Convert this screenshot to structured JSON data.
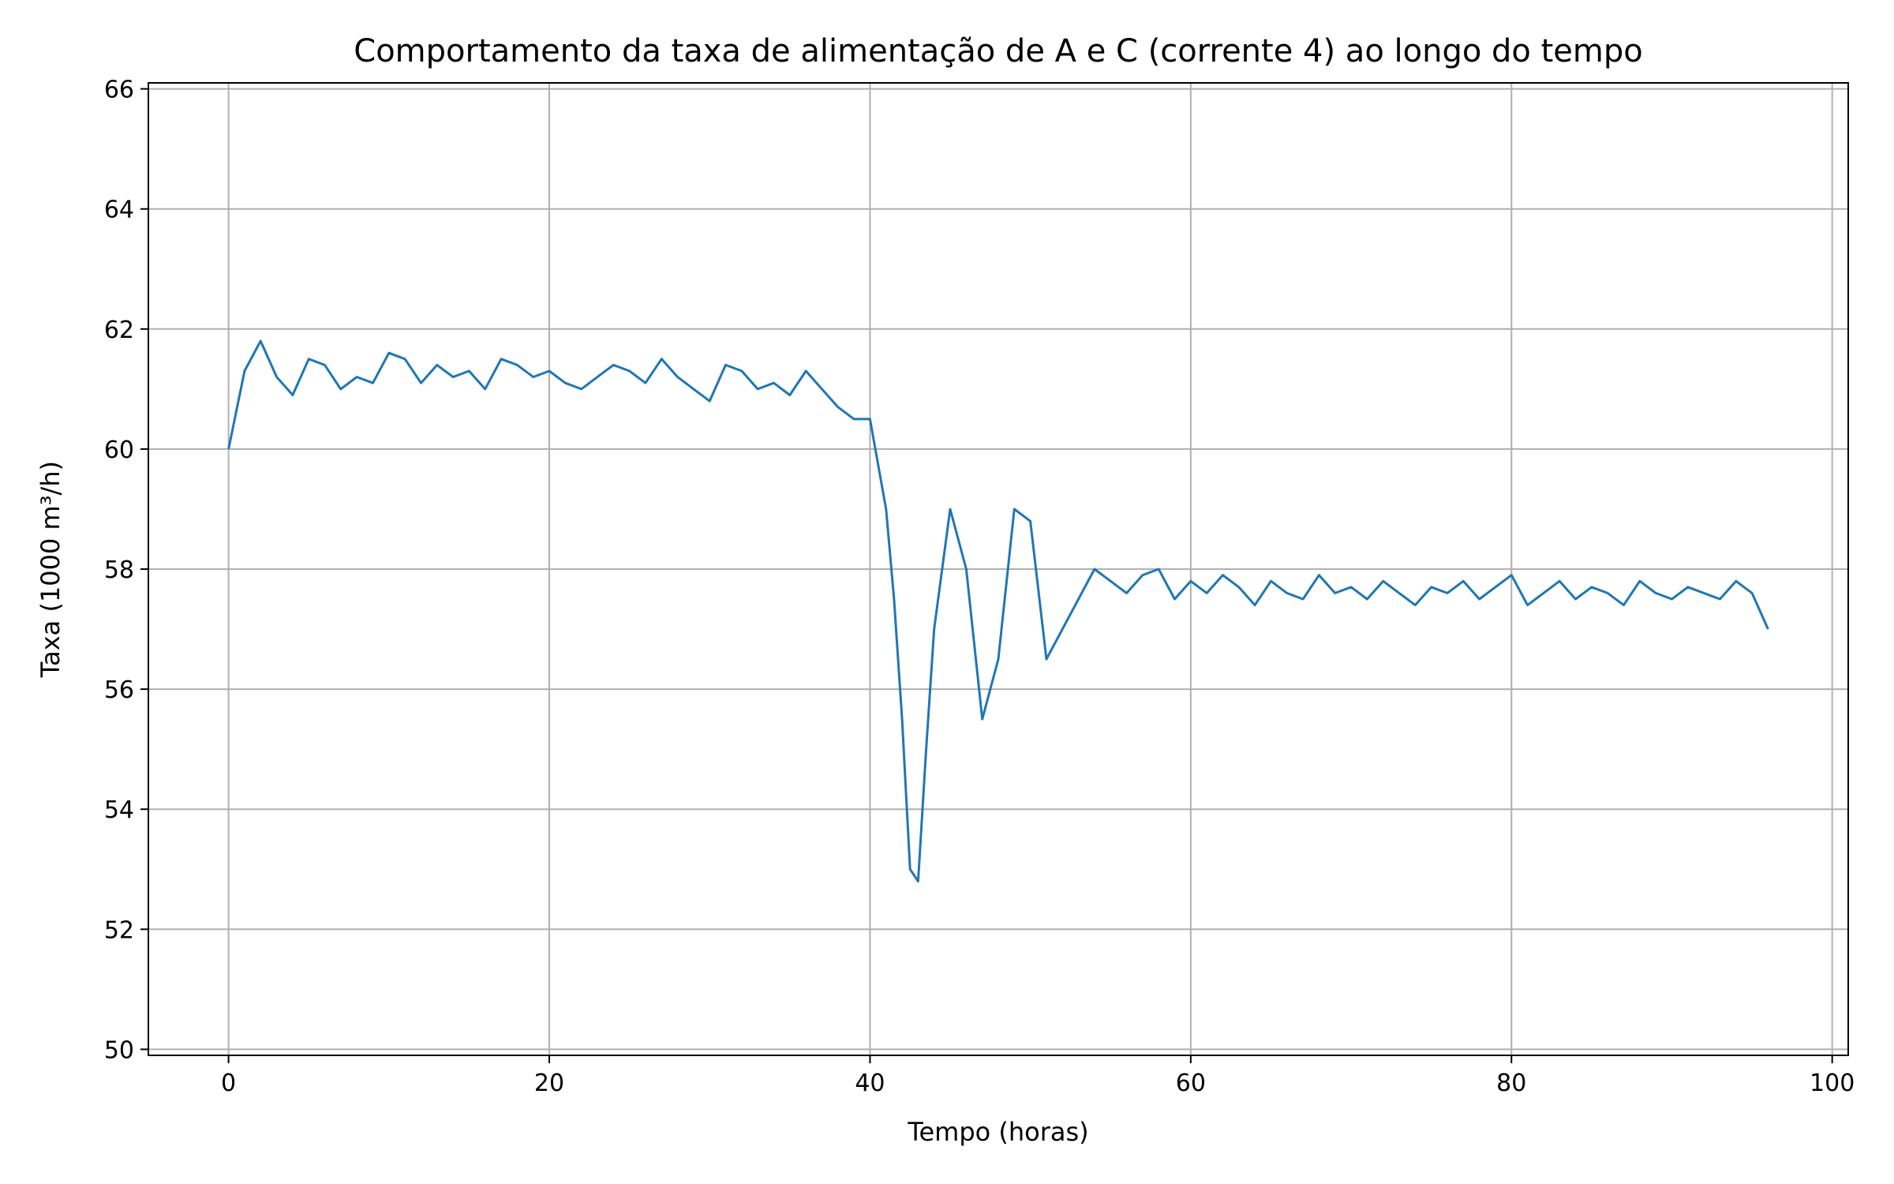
{
  "chart_data": {
    "type": "line",
    "title": "Comportamento da taxa de alimentação de A e C (corrente 4) ao longo do tempo",
    "xlabel": "Tempo (horas)",
    "ylabel": "Taxa (1000 m³/h)",
    "xlim": [
      -5,
      101
    ],
    "ylim": [
      49.9,
      66.1
    ],
    "xticks": [
      0,
      20,
      40,
      60,
      80,
      100
    ],
    "xtick_labels": [
      "0",
      "20",
      "40",
      "60",
      "80",
      "100"
    ],
    "yticks": [
      50,
      52,
      54,
      56,
      58,
      60,
      62,
      64,
      66
    ],
    "ytick_labels": [
      "50",
      "52",
      "54",
      "56",
      "58",
      "60",
      "62",
      "64",
      "66"
    ],
    "grid": true,
    "line_color": "#1f77b4",
    "series": [
      {
        "x": [
          0,
          1,
          2,
          3,
          4,
          5,
          6,
          7,
          8,
          9,
          10,
          11,
          12,
          13,
          14,
          15,
          16,
          17,
          18,
          19,
          20,
          21,
          22,
          23,
          24,
          25,
          26,
          27,
          28,
          29,
          30,
          31,
          32,
          33,
          34,
          35,
          36,
          37,
          38,
          39,
          40,
          41,
          41.5,
          42,
          42.5,
          43,
          43.5,
          44,
          45,
          46,
          47,
          48,
          49,
          50,
          51,
          52,
          53,
          54,
          55,
          56,
          57,
          58,
          59,
          60,
          61,
          62,
          63,
          64,
          65,
          66,
          67,
          68,
          69,
          70,
          71,
          72,
          73,
          74,
          75,
          76,
          77,
          78,
          79,
          80,
          81,
          82,
          83,
          84,
          85,
          86,
          87,
          88,
          89,
          90,
          91,
          92,
          93,
          94,
          95,
          96
        ],
        "y": [
          60.0,
          61.3,
          61.8,
          61.2,
          60.9,
          61.5,
          61.4,
          61.0,
          61.2,
          61.1,
          61.6,
          61.5,
          61.1,
          61.4,
          61.2,
          61.3,
          61.0,
          61.5,
          61.4,
          61.2,
          61.3,
          61.1,
          61.0,
          61.2,
          61.4,
          61.3,
          61.1,
          61.5,
          61.2,
          61.0,
          60.8,
          61.4,
          61.3,
          61.0,
          61.1,
          60.9,
          61.3,
          61.0,
          60.7,
          60.5,
          60.5,
          59.0,
          57.5,
          55.5,
          53.0,
          52.8,
          55.0,
          57.0,
          59.0,
          58.0,
          55.5,
          56.5,
          59.0,
          58.8,
          56.5,
          57.0,
          57.5,
          58.0,
          57.8,
          57.6,
          57.9,
          58.0,
          57.5,
          57.8,
          57.6,
          57.9,
          57.7,
          57.4,
          57.8,
          57.6,
          57.5,
          57.9,
          57.6,
          57.7,
          57.5,
          57.8,
          57.6,
          57.4,
          57.7,
          57.6,
          57.8,
          57.5,
          57.7,
          57.9,
          57.4,
          57.6,
          57.8,
          57.5,
          57.7,
          57.6,
          57.4,
          57.8,
          57.6,
          57.5,
          57.7,
          57.6,
          57.5,
          57.8,
          57.6,
          57.0
        ]
      }
    ]
  }
}
